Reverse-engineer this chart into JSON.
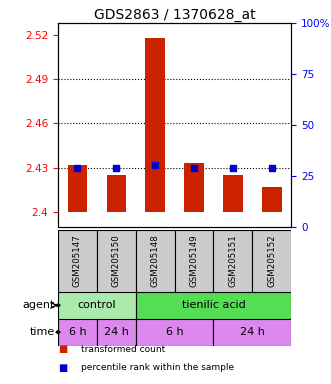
{
  "title": "GDS2863 / 1370628_at",
  "samples": [
    "GSM205147",
    "GSM205150",
    "GSM205148",
    "GSM205149",
    "GSM205151",
    "GSM205152"
  ],
  "bar_bottoms": [
    2.4,
    2.4,
    2.4,
    2.4,
    2.4,
    2.4
  ],
  "bar_tops": [
    2.432,
    2.425,
    2.518,
    2.433,
    2.425,
    2.417
  ],
  "percentile_values": [
    2.43,
    2.43,
    2.432,
    2.43,
    2.43,
    2.43
  ],
  "ylim_left": [
    2.39,
    2.528
  ],
  "ylim_right": [
    0,
    100
  ],
  "yticks_left": [
    2.4,
    2.43,
    2.46,
    2.49,
    2.52
  ],
  "yticks_right": [
    0,
    25,
    50,
    75,
    100
  ],
  "ytick_labels_left": [
    "2.4",
    "2.43",
    "2.46",
    "2.49",
    "2.52"
  ],
  "ytick_labels_right": [
    "0",
    "25",
    "50",
    "75",
    "100%"
  ],
  "dotted_lines": [
    2.43,
    2.46,
    2.49
  ],
  "bar_color": "#cc2200",
  "dot_color": "#0000cc",
  "agent_groups": [
    {
      "label": "control",
      "start": 0,
      "end": 2,
      "color": "#aaeaaa"
    },
    {
      "label": "tienilic acid",
      "start": 2,
      "end": 6,
      "color": "#55dd55"
    }
  ],
  "time_groups": [
    {
      "label": "6 h",
      "start": 0,
      "end": 1,
      "color": "#dd88ee"
    },
    {
      "label": "24 h",
      "start": 1,
      "end": 2,
      "color": "#dd88ee"
    },
    {
      "label": "6 h",
      "start": 2,
      "end": 4,
      "color": "#dd88ee"
    },
    {
      "label": "24 h",
      "start": 4,
      "end": 6,
      "color": "#dd88ee"
    }
  ],
  "legend_items": [
    {
      "label": "transformed count",
      "color": "#cc2200"
    },
    {
      "label": "percentile rank within the sample",
      "color": "#0000cc"
    }
  ],
  "agent_label": "agent",
  "time_label": "time",
  "title_fontsize": 10,
  "tick_fontsize": 7.5,
  "bar_label_fontsize": 6.5,
  "annot_fontsize": 8
}
